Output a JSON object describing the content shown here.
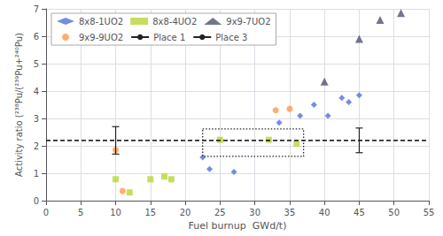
{
  "chart_data": {
    "type": "scatter",
    "xlabel": "Fuel burnup  GWd/t)",
    "ylabel": "Activity ratio (²³⁸Pu/(²³⁹Pu+²⁴⁰Pu)",
    "xlim": [
      0,
      55
    ],
    "ylim": [
      0,
      7
    ],
    "xticks": [
      0,
      5,
      10,
      15,
      20,
      25,
      30,
      35,
      40,
      45,
      50,
      55
    ],
    "yticks": [
      0,
      1,
      2,
      3,
      4,
      5,
      6,
      7
    ],
    "grid": true,
    "legend": "upper left",
    "series": [
      {
        "name": "8x8-1UO2",
        "marker": "diamond",
        "x": [
          22.5,
          23.5,
          27.0,
          33.5,
          36.5,
          38.5,
          40.5,
          42.5,
          43.5,
          45.0
        ],
        "values": [
          1.58,
          1.15,
          1.05,
          2.85,
          3.1,
          3.5,
          3.1,
          3.75,
          3.6,
          3.85
        ]
      },
      {
        "name": "8x8-4UO2",
        "marker": "square",
        "x": [
          10,
          12,
          15,
          17,
          18,
          25,
          32,
          36
        ],
        "values": [
          0.78,
          0.3,
          0.78,
          0.88,
          0.78,
          2.22,
          2.22,
          2.08
        ]
      },
      {
        "name": "9x9-7UO2",
        "marker": "triangle",
        "x": [
          40,
          45,
          48,
          51
        ],
        "values": [
          4.35,
          5.9,
          6.6,
          6.85
        ]
      },
      {
        "name": "9x9-9UO2",
        "marker": "circle",
        "x": [
          10,
          11,
          33,
          35
        ],
        "values": [
          1.85,
          0.35,
          3.3,
          3.35
        ]
      },
      {
        "name": "Place 1",
        "type": "line",
        "line_style": "dashed",
        "color": "#222222",
        "x": [
          10
        ],
        "values": [
          2.2
        ],
        "yerr": [
          0.5
        ]
      },
      {
        "name": "Place 3",
        "type": "line",
        "line_style": "dashed",
        "color": "#222222",
        "x": [
          45
        ],
        "values": [
          2.2
        ],
        "yerr": [
          0.45
        ]
      }
    ],
    "box": {
      "x0": 22.5,
      "y0": 1.62,
      "width": 14.5,
      "height": 1.0,
      "line_style": "dotted",
      "color": "#222222"
    }
  }
}
